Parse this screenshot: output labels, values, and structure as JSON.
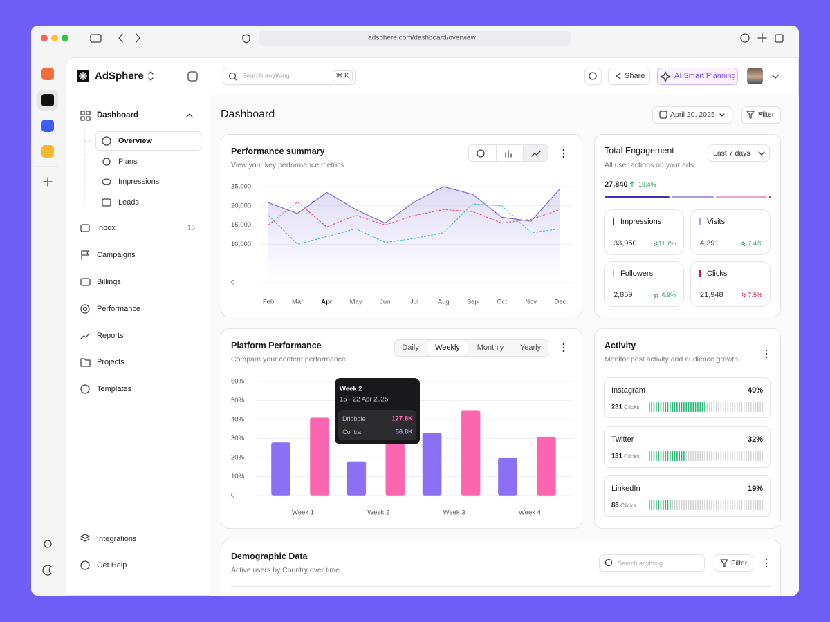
{
  "browser": {
    "url": "adsphere.com/dashboard/overview"
  },
  "sidebar": {
    "brand": "AdSphere",
    "dashboard": "Dashboard",
    "subnav": [
      "Overview",
      "Plans",
      "Impressions",
      "Leads"
    ],
    "nav": [
      {
        "label": "Inbox",
        "badge": "15"
      },
      {
        "label": "Campaigns"
      },
      {
        "label": "Billings"
      },
      {
        "label": "Performance"
      },
      {
        "label": "Reports"
      },
      {
        "label": "Projects"
      },
      {
        "label": "Templates"
      }
    ],
    "footer": [
      "Integrations",
      "Get Help"
    ]
  },
  "header": {
    "search_placeholder": "Search anything",
    "shortcut": "⌘ K",
    "share": "Share",
    "ai": "AI Smart Planning"
  },
  "page": {
    "title": "Dashboard",
    "date": "April 20, 2025",
    "filter": "Filter"
  },
  "performance_summary": {
    "title": "Performance summary",
    "subtitle": "View your key performance metrics",
    "chart": {
      "type": "line",
      "categories": [
        "Feb",
        "Mar",
        "Apr",
        "May",
        "Jun",
        "Jul",
        "Aug",
        "Sep",
        "Oct",
        "Nov",
        "Dec"
      ],
      "highlight": "Apr",
      "ylim": [
        0,
        25000
      ],
      "yticks": [
        0,
        {
          "value": 10000,
          "label": "10,000"
        },
        {
          "value": 15000,
          "label": "15,000"
        },
        {
          "value": 20000,
          "label": "20,000"
        },
        {
          "value": 25000,
          "label": "25,000"
        }
      ],
      "grid": true,
      "series": [
        {
          "color": "#7b6ad6",
          "dash": false,
          "area": true,
          "values": [
            20800,
            18000,
            23500,
            19000,
            15500,
            21000,
            25000,
            23000,
            17000,
            16000,
            24500
          ]
        },
        {
          "color": "#e9587f",
          "dash": true,
          "area": false,
          "values": [
            15000,
            21000,
            14500,
            17500,
            15000,
            17500,
            19000,
            18500,
            15500,
            16500,
            19000
          ]
        },
        {
          "color": "#45bfd8",
          "dash": true,
          "area": false,
          "values": [
            17500,
            10000,
            12000,
            14000,
            10500,
            11500,
            13000,
            20500,
            20000,
            13000,
            14000
          ]
        }
      ]
    }
  },
  "platform_performance": {
    "title": "Platform Performance",
    "subtitle": "Compare your content performance",
    "tabs": [
      "Daily",
      "Weekly",
      "Monthly",
      "Yearly"
    ],
    "selected_tab": 1,
    "chart": {
      "type": "bar",
      "categories": [
        "Week 1",
        "Week 2",
        "Week 3",
        "Week 4"
      ],
      "ylim": [
        0,
        60
      ],
      "yticks": [
        0,
        {
          "value": 10,
          "label": "10%"
        },
        {
          "value": 20,
          "label": "20%"
        },
        {
          "value": 30,
          "label": "30%"
        },
        {
          "value": 40,
          "label": "40%"
        },
        {
          "value": 50,
          "label": "50%"
        },
        {
          "value": 60,
          "label": "60%"
        }
      ],
      "grid": true,
      "series": [
        {
          "color": "#8b6ff5",
          "values": [
            28,
            18,
            33,
            20
          ]
        },
        {
          "color": "#fc65b0",
          "values": [
            41,
            28,
            45,
            31
          ]
        }
      ]
    },
    "tooltip": {
      "title": "Week 2",
      "dates": "15 - 22 Apr 2025",
      "rows": [
        {
          "label": "Dribbble",
          "value": "127.8K",
          "color": "#ff6fae"
        },
        {
          "label": "Contra",
          "value": "56.8K",
          "color": "#a190ff"
        }
      ]
    }
  },
  "total_engagement": {
    "title": "Total Engagement",
    "subtitle": "All user actions on your ads.",
    "range": "Last 7 days",
    "total": "27,840",
    "change": "19.4%",
    "stats": [
      {
        "label": "Impressions",
        "value": "33,950",
        "change": "11.7%",
        "trend": "up",
        "color": "#3f2a9e"
      },
      {
        "label": "Visits",
        "value": "4,291",
        "change": "7.4%",
        "trend": "up",
        "color": "#a99cf0"
      },
      {
        "label": "Followers",
        "value": "2,859",
        "change": "4.9%",
        "trend": "up",
        "color": "#f4a0c6"
      },
      {
        "label": "Clicks",
        "value": "21,948",
        "change": "7.5%",
        "trend": "down",
        "color": "#c2185b"
      }
    ]
  },
  "activity": {
    "title": "Activity",
    "subtitle": "Monitor post activity and audience growth",
    "platforms": [
      {
        "name": "Instagram",
        "percent": 49,
        "percent_label": "49%",
        "clicks": "231",
        "unit": "Clicks"
      },
      {
        "name": "Twitter",
        "percent": 32,
        "percent_label": "32%",
        "clicks": "131",
        "unit": "Clicks"
      },
      {
        "name": "LinkedIn",
        "percent": 19,
        "percent_label": "19%",
        "clicks": "88",
        "unit": "Clicks"
      }
    ]
  },
  "demographic": {
    "title": "Demographic Data",
    "subtitle": "Active users by Country over time",
    "search_placeholder": "Search anything",
    "filter": "Filter"
  }
}
